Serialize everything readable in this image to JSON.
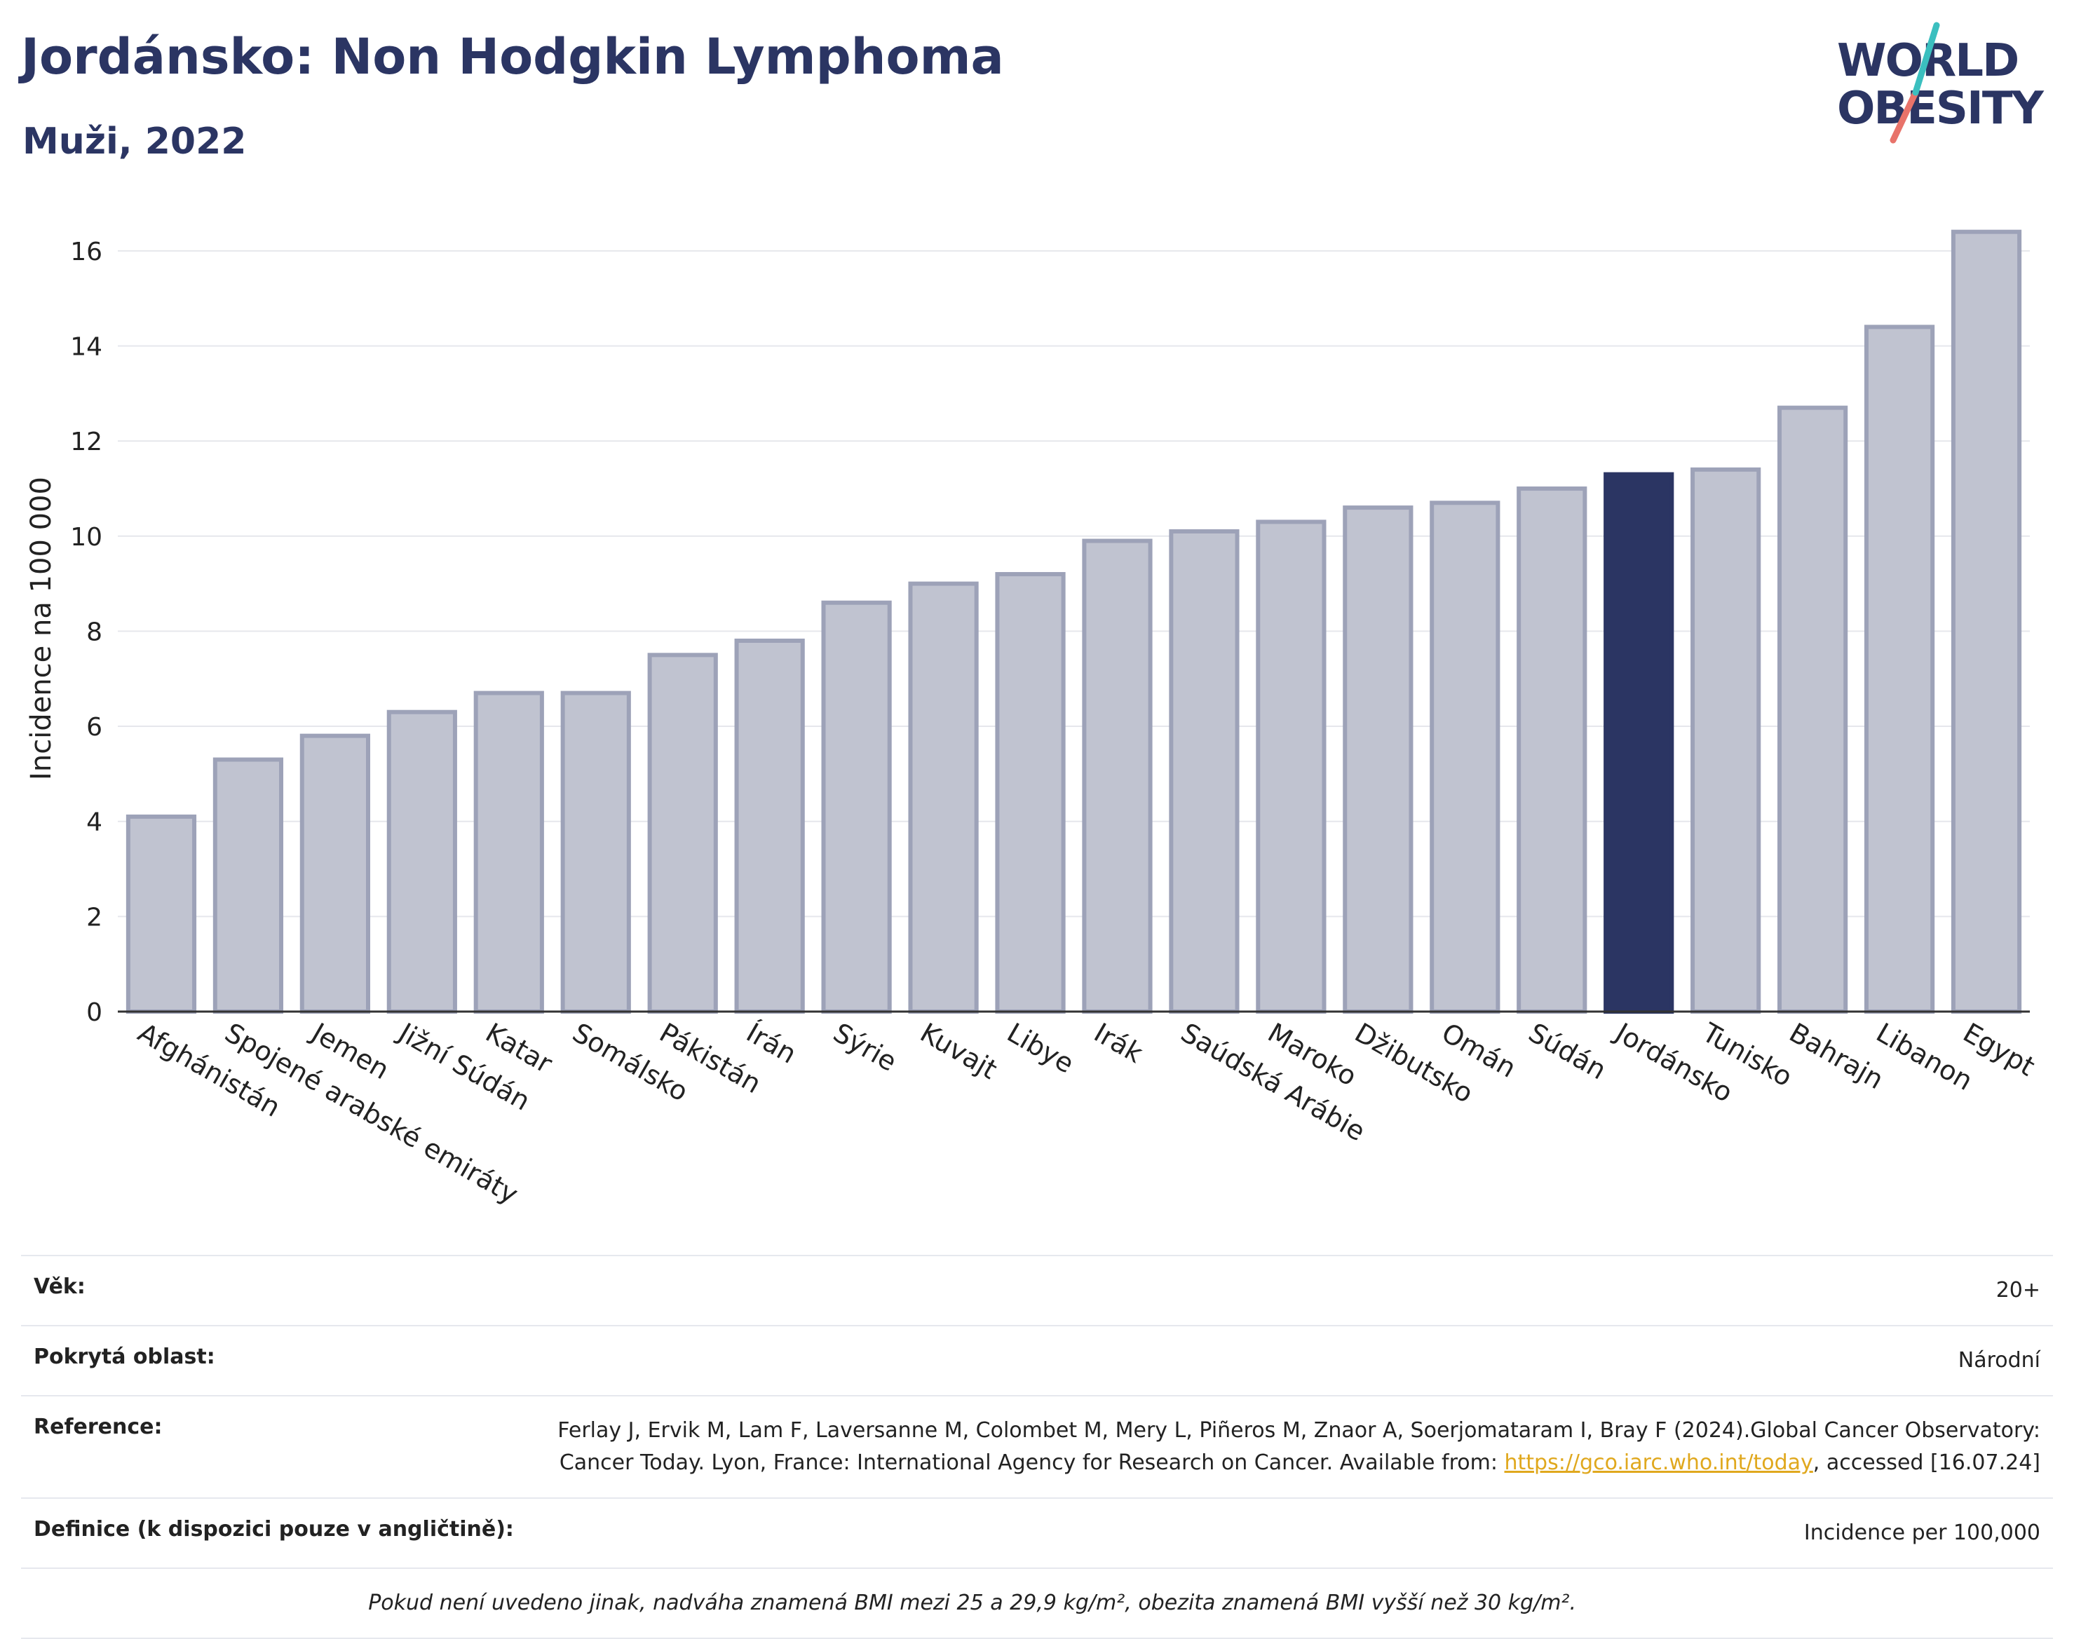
{
  "header": {
    "title": "Jordánsko: Non Hodgkin Lymphoma",
    "subtitle": "Muži, 2022",
    "logo_line1": "WORLD",
    "logo_line2": "OBESITY"
  },
  "chart_data": {
    "type": "bar",
    "title": "Jordánsko: Non Hodgkin Lymphoma",
    "subtitle": "Muži, 2022",
    "xlabel": "",
    "ylabel": "Incidence na 100 000",
    "ylim": [
      0,
      17
    ],
    "yticks": [
      0,
      2,
      4,
      6,
      8,
      10,
      12,
      14,
      16
    ],
    "grid": true,
    "categories": [
      "Afghánistán",
      "Spojené arabské emiráty",
      "Jemen",
      "Jižní Súdán",
      "Katar",
      "Somálsko",
      "Pákistán",
      "Írán",
      "Sýrie",
      "Kuvajt",
      "Libye",
      "Irák",
      "Saúdská Arábie",
      "Maroko",
      "Džibutsko",
      "Omán",
      "Súdán",
      "Jordánsko",
      "Tunisko",
      "Bahrajn",
      "Libanon",
      "Egypt"
    ],
    "values": [
      4.1,
      5.3,
      5.8,
      6.3,
      6.7,
      6.7,
      7.5,
      7.8,
      8.6,
      9.0,
      9.2,
      9.9,
      10.1,
      10.3,
      10.6,
      10.7,
      11.0,
      11.3,
      11.4,
      12.7,
      14.4,
      16.4
    ],
    "highlight": "Jordánsko",
    "colors": {
      "bar": "#c0c3d0",
      "bar_edge": "#9da2b8",
      "highlight": "#2b3563"
    }
  },
  "info": {
    "age_label": "Věk:",
    "age_value": "20+",
    "area_label": "Pokrytá oblast:",
    "area_value": "Národní",
    "ref_label": "Reference:",
    "ref_text1": "Ferlay J, Ervik M, Lam F, Laversanne M, Colombet M, Mery L, Piñeros M, Znaor A, Soerjomataram I, Bray F (2024).Global Cancer Observatory: Cancer Today. Lyon, France: International Agency for Research on Cancer. Available from: ",
    "ref_link": "https://gco.iarc.who.int/today",
    "ref_text2": ", accessed [16.07.24]",
    "def_label": "Definice (k dispozici pouze v angličtině):",
    "def_value": "Incidence per 100,000",
    "note": "Pokud není uvedeno jinak, nadváha znamená BMI mezi 25 a 29,9 kg/m², obezita znamená BMI vyšší než 30 kg/m²."
  }
}
